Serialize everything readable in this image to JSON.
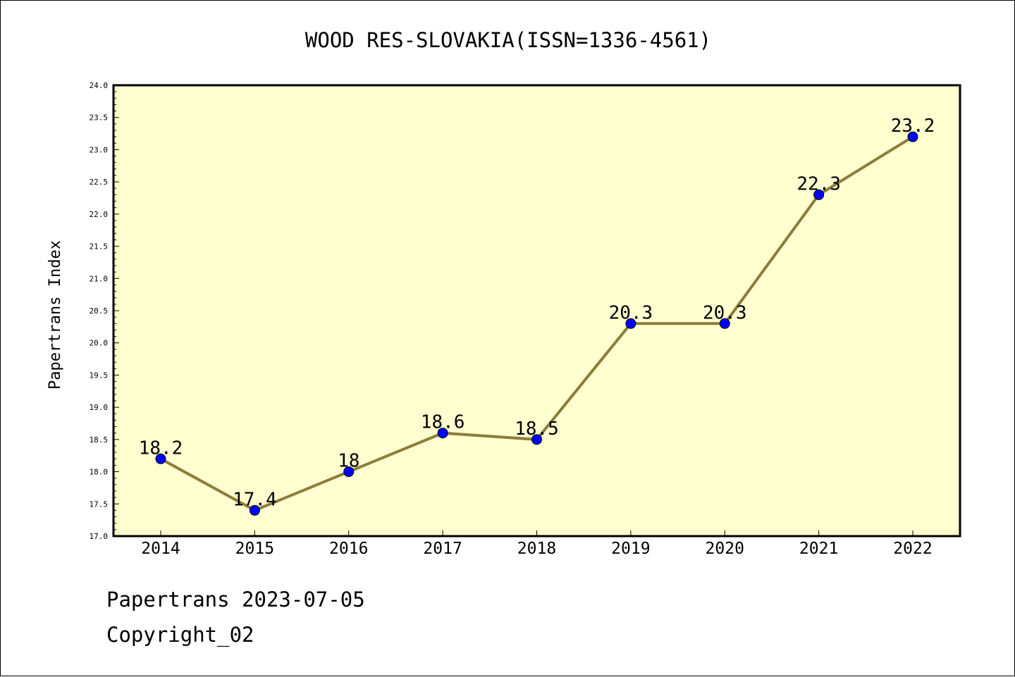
{
  "chart_data": {
    "type": "line",
    "title": "WOOD RES-SLOVAKIA(ISSN=1336-4561)",
    "xlabel": "",
    "ylabel": "Papertrans Index",
    "categories": [
      "2014",
      "2015",
      "2016",
      "2017",
      "2018",
      "2019",
      "2020",
      "2021",
      "2022"
    ],
    "series": [
      {
        "values": [
          18.2,
          17.4,
          18,
          18.6,
          18.5,
          20.3,
          20.3,
          22.3,
          23.2
        ],
        "data_labels": [
          "18.2",
          "17.4",
          "18",
          "18.6",
          "18.5",
          "20.3",
          "20.3",
          "22.3",
          "23.2"
        ]
      }
    ],
    "ylim": [
      17.0,
      24.0
    ],
    "yticks": [
      "17.0",
      "17.5",
      "18.0",
      "18.5",
      "19.0",
      "19.5",
      "20.0",
      "20.5",
      "21.0",
      "21.5",
      "22.0",
      "22.5",
      "23.0",
      "23.5",
      "24.0"
    ],
    "grid": false,
    "legend": "none",
    "colors": {
      "plot_background": "#FFFFD0",
      "line": "#8B7D3A",
      "marker": "#0000FF"
    }
  },
  "footer": {
    "line1": "Papertrans 2023-07-05",
    "line2": "Copyright_02"
  }
}
